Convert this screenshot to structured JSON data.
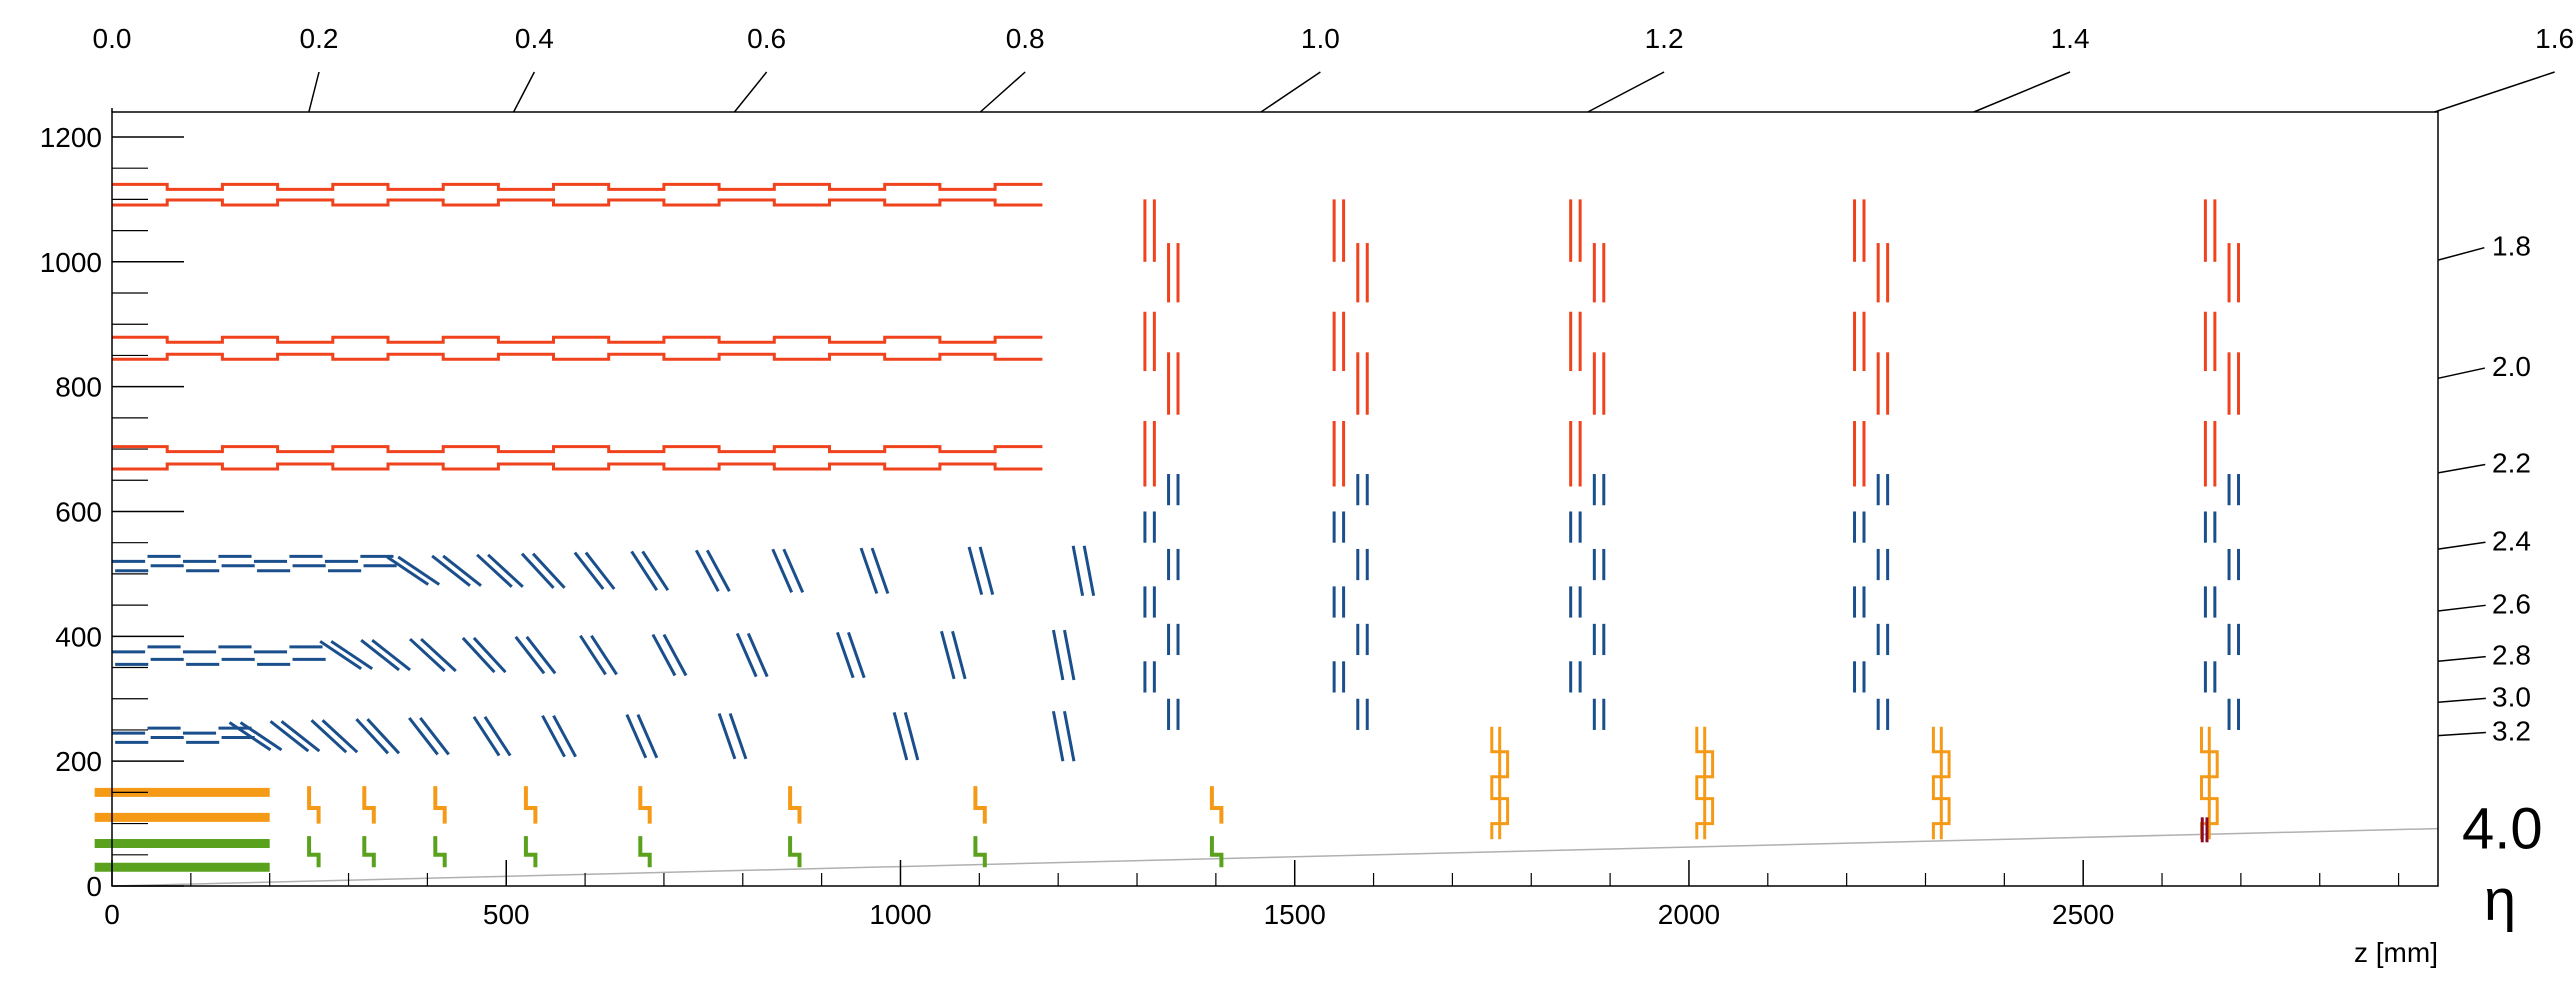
{
  "chart_data": {
    "type": "scatter",
    "xlabel": "z [mm]",
    "ylabel": "",
    "xlim": [
      0,
      2950
    ],
    "ylim": [
      0,
      1240
    ],
    "x_ticks": [
      "0",
      "500",
      "1000",
      "1500",
      "2000",
      "2500"
    ],
    "y_ticks": [
      "0",
      "200",
      "400",
      "600",
      "800",
      "1000",
      "1200"
    ],
    "eta_axis_label": "η",
    "eta_lines": [
      {
        "label": "0.0",
        "value": 0.0
      },
      {
        "label": "0.2",
        "value": 0.2
      },
      {
        "label": "0.4",
        "value": 0.4
      },
      {
        "label": "0.6",
        "value": 0.6
      },
      {
        "label": "0.8",
        "value": 0.8
      },
      {
        "label": "1.0",
        "value": 1.0
      },
      {
        "label": "1.2",
        "value": 1.2
      },
      {
        "label": "1.4",
        "value": 1.4
      },
      {
        "label": "1.6",
        "value": 1.6
      },
      {
        "label": "1.8",
        "value": 1.8
      },
      {
        "label": "2.0",
        "value": 2.0
      },
      {
        "label": "2.2",
        "value": 2.2
      },
      {
        "label": "2.4",
        "value": 2.4
      },
      {
        "label": "2.6",
        "value": 2.6
      },
      {
        "label": "2.8",
        "value": 2.8
      },
      {
        "label": "3.0",
        "value": 3.0
      },
      {
        "label": "3.2",
        "value": 3.2
      },
      {
        "label": "4.0",
        "value": 4.0
      }
    ],
    "colors": {
      "strip": "#f0421c",
      "macro_pixel": "#1a4f8c",
      "pixel_outer": "#f59a17",
      "pixel_inner": "#5aa11e",
      "highlight": "#8b0a2a",
      "eta_line": "#000000",
      "eta4_line": "#b0b0b0"
    },
    "barrel_layers": [
      {
        "name": "strip",
        "r": [
          1120,
          1095,
          875,
          848,
          700,
          672
        ],
        "z_max": 1180
      },
      {
        "name": "macro_pixel",
        "r": [
          520,
          505,
          375,
          355,
          245,
          230
        ],
        "z_flat_max": [
          345,
          250,
          150
        ]
      },
      {
        "name": "pixel_outer",
        "r": [
          150,
          110
        ],
        "z_max": 200
      },
      {
        "name": "pixel_inner",
        "r": [
          68,
          30
        ],
        "z_max": 200
      }
    ],
    "tilted_macro_pixel_z": [
      [
        375,
        430,
        485,
        540,
        605,
        675,
        755,
        850,
        960,
        1095,
        1225
      ],
      [
        290,
        340,
        400,
        465,
        530,
        610,
        700,
        805,
        930,
        1060,
        1200
      ],
      [
        175,
        225,
        275,
        330,
        395,
        475,
        560,
        665,
        780,
        1000,
        1200
      ]
    ],
    "pixel_disks_z": [
      250,
      320,
      410,
      525,
      670,
      860,
      1095,
      1395,
      1750,
      2010,
      2310,
      2650
    ],
    "strip_endcap_z": [
      1310,
      1550,
      1850,
      2210,
      2655
    ],
    "eta4_end_r": 92
  }
}
